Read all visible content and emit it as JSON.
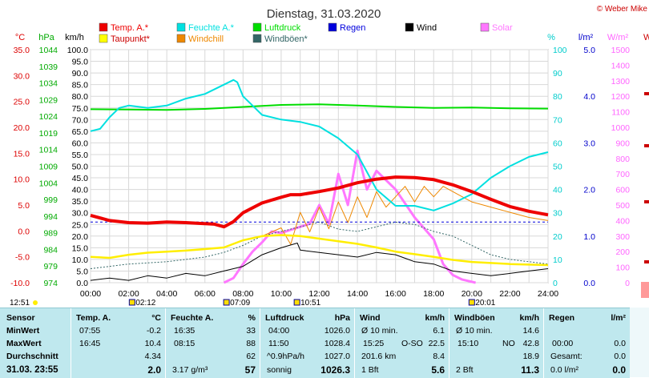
{
  "chart_data": {
    "type": "line",
    "title": "Dienstag, 31.03.2020",
    "copyright": "© Weber Mike",
    "x": [
      "00:00",
      "02:00",
      "04:00",
      "06:00",
      "08:00",
      "10:00",
      "12:00",
      "14:00",
      "16:00",
      "18:00",
      "20:00",
      "22:00",
      "24:00"
    ],
    "xlim": [
      0,
      24
    ],
    "grid": true,
    "axes": {
      "temp": {
        "unit": "°C",
        "ticks": [
          "35.0",
          "30.0",
          "25.0",
          "20.0",
          "15.0",
          "10.0",
          "5.0",
          "0.0",
          "-5.0",
          "-10.0"
        ],
        "range": [
          -10,
          35
        ],
        "color": "#dd0000"
      },
      "pressure": {
        "unit": "hPa",
        "ticks": [
          "1044",
          "1039",
          "1034",
          "1029",
          "1024",
          "1019",
          "1014",
          "1009",
          "1004",
          "999",
          "994",
          "989",
          "984",
          "979",
          "974"
        ],
        "range": [
          974,
          1044
        ],
        "color": "#00aa00"
      },
      "wind": {
        "unit": "km/h",
        "ticks": [
          "100.0",
          "95.0",
          "90.0",
          "85.0",
          "80.0",
          "75.0",
          "70.0",
          "65.0",
          "60.0",
          "55.0",
          "50.0",
          "45.0",
          "40.0",
          "35.0",
          "30.0",
          "25.0",
          "20.0",
          "15.0",
          "10.0",
          "5.0",
          "0.0"
        ],
        "range": [
          0,
          100
        ],
        "color": "#000000"
      },
      "humidity": {
        "unit": "%",
        "ticks": [
          "100",
          "90",
          "80",
          "70",
          "60",
          "50",
          "40",
          "30",
          "20",
          "10",
          "0"
        ],
        "range": [
          0,
          100
        ],
        "color": "#00cccc"
      },
      "rain": {
        "unit": "l/m²",
        "ticks": [
          "5.0",
          "4.0",
          "3.0",
          "2.0",
          "1.0",
          "0.0"
        ],
        "range": [
          0,
          5
        ],
        "color": "#0000cc"
      },
      "solar": {
        "unit": "W/m²",
        "ticks": [
          "1500",
          "1400",
          "1300",
          "1200",
          "1100",
          "1000",
          "900",
          "800",
          "700",
          "600",
          "500",
          "400",
          "300",
          "200",
          "100",
          "0"
        ],
        "range": [
          0,
          1500
        ],
        "color": "#ff66ff"
      },
      "extra_w": "W"
    },
    "legend": [
      {
        "name": "Temp. A.*",
        "color": "#ee0000"
      },
      {
        "name": "Feuchte A.*",
        "color": "#00e0e0"
      },
      {
        "name": "Luftdruck",
        "color": "#00dd00"
      },
      {
        "name": "Regen",
        "color": "#0000dd"
      },
      {
        "name": "Wind",
        "color": "#000000"
      },
      {
        "name": "Solar",
        "color": "#ff77ff"
      },
      {
        "name": "Taupunkt*",
        "color": "#ffff00"
      },
      {
        "name": "Windchill",
        "color": "#ee8800"
      },
      {
        "name": "Windböen*",
        "color": "#336666"
      }
    ],
    "series": [
      {
        "name": "Temp. A.*",
        "unit": "°C",
        "x": [
          0,
          1,
          2,
          3,
          4,
          5,
          6,
          6.5,
          7,
          7.5,
          8,
          9,
          10,
          10.5,
          11,
          12,
          13,
          14,
          15,
          16,
          17,
          18,
          19,
          20,
          21,
          22,
          23,
          24
        ],
        "y": [
          3.0,
          2.0,
          1.6,
          1.5,
          1.7,
          1.6,
          1.4,
          1.3,
          0.8,
          1.8,
          3.5,
          5.4,
          6.5,
          7.0,
          7.0,
          7.6,
          8.3,
          9.3,
          10.0,
          10.4,
          10.3,
          9.9,
          8.9,
          7.6,
          6.1,
          4.7,
          3.8,
          3.1
        ]
      },
      {
        "name": "Feuchte A.*",
        "unit": "%",
        "x": [
          0,
          0.5,
          1,
          1.5,
          2,
          3,
          4,
          5,
          6,
          7,
          7.5,
          7.7,
          8,
          8.5,
          9,
          10,
          11,
          12,
          13,
          14,
          15,
          16,
          17,
          18,
          19,
          20,
          21,
          22,
          23,
          24
        ],
        "y": [
          65,
          66,
          71,
          75,
          76,
          75,
          76,
          79,
          81,
          85,
          87,
          86,
          80,
          76,
          72,
          70,
          69,
          67,
          62,
          55,
          40,
          33,
          33,
          31,
          34,
          38,
          45,
          50,
          54,
          56
        ]
      },
      {
        "name": "Luftdruck",
        "unit": "hPa",
        "x": [
          0,
          2,
          4,
          6,
          8,
          10,
          12,
          14,
          16,
          18,
          20,
          22,
          24
        ],
        "y": [
          1026.1,
          1026.0,
          1025.9,
          1026.2,
          1026.8,
          1027.4,
          1027.6,
          1027.2,
          1026.8,
          1026.5,
          1026.6,
          1026.4,
          1026.3
        ]
      },
      {
        "name": "Regen",
        "unit": "l/m²",
        "x": [
          0,
          24
        ],
        "y": [
          0.0,
          0.0
        ],
        "level_line": 1.3
      },
      {
        "name": "Taupunkt*",
        "unit": "°C",
        "x": [
          0,
          1,
          2,
          3,
          4,
          5,
          6,
          7,
          8,
          9,
          10,
          11,
          12,
          13,
          14,
          15,
          16,
          17,
          18,
          19,
          20,
          21,
          22,
          23,
          24
        ],
        "y": [
          -5.0,
          -5.2,
          -4.6,
          -4.2,
          -4.0,
          -3.8,
          -3.5,
          -3.2,
          -1.8,
          -1.0,
          -0.8,
          -1.0,
          -1.5,
          -2.0,
          -2.5,
          -3.2,
          -4.0,
          -4.5,
          -5.0,
          -5.6,
          -6.0,
          -6.2,
          -6.4,
          -6.5,
          -6.6
        ]
      },
      {
        "name": "Windchill",
        "unit": "°C",
        "x": [
          9,
          10,
          10.5,
          11,
          11.5,
          12,
          12.5,
          13,
          13.5,
          14,
          14.5,
          15,
          15.5,
          16,
          16.5,
          17,
          17.5,
          18,
          18.5,
          19,
          19.5,
          20,
          21,
          22,
          23,
          24
        ],
        "y": [
          -1.0,
          0.6,
          -2.6,
          3.6,
          -0.2,
          4.6,
          0.4,
          5.6,
          1.6,
          6.6,
          2.6,
          7.6,
          4.6,
          6.6,
          8.6,
          5.6,
          8.6,
          6.6,
          8.6,
          7.6,
          6.6,
          5.6,
          4.6,
          3.6,
          2.6,
          2.0
        ]
      },
      {
        "name": "Windböen*",
        "unit": "km/h",
        "x": [
          0,
          2,
          4,
          6,
          7,
          8,
          9,
          10,
          11,
          12,
          13,
          14,
          15,
          16,
          17,
          18,
          19,
          20,
          21,
          22,
          23,
          24
        ],
        "y": [
          6,
          8,
          9,
          11,
          13,
          16,
          20,
          22,
          24,
          26,
          23,
          22,
          24,
          26,
          25,
          22,
          20,
          16,
          12,
          10,
          9,
          8
        ]
      },
      {
        "name": "Wind",
        "unit": "km/h",
        "x": [
          0,
          1,
          2,
          3,
          4,
          5,
          6,
          7,
          8,
          9,
          10,
          10.85,
          11,
          12,
          13,
          14,
          15,
          16,
          17,
          18,
          19,
          20,
          21,
          22,
          23,
          24
        ],
        "y": [
          1,
          2,
          1,
          3,
          2,
          4,
          3,
          5,
          7,
          12,
          15,
          17,
          14,
          13,
          12,
          11,
          13,
          12,
          9,
          8,
          5,
          4,
          3,
          4,
          5,
          6
        ]
      },
      {
        "name": "Solar",
        "unit": "W/m²",
        "x": [
          7,
          7.5,
          8,
          8.5,
          9,
          9.5,
          10,
          10.5,
          11,
          11.5,
          12,
          12.5,
          13,
          13.5,
          14,
          14.5,
          15,
          16,
          17,
          18,
          18.5,
          19,
          19.5,
          20.2
        ],
        "y": [
          0,
          30,
          120,
          200,
          260,
          330,
          320,
          340,
          360,
          380,
          500,
          380,
          700,
          500,
          850,
          600,
          720,
          600,
          420,
          280,
          120,
          50,
          20,
          0
        ]
      }
    ],
    "event_markers": [
      {
        "label": "12:51",
        "x_text": "12:51"
      },
      {
        "label": "02:12",
        "x": 2.2
      },
      {
        "label": "07:09",
        "x": 7.15
      },
      {
        "label": "10:51",
        "x": 10.85
      },
      {
        "label": "20:01",
        "x": 20.02
      }
    ]
  },
  "table": {
    "col1": {
      "header": "Sensor",
      "r1": "MinWert",
      "r2": "MaxWert",
      "r3": "Durchschnitt",
      "r4": "31.03.  23:55"
    },
    "col2": {
      "header": "Temp. A.",
      "unit": "°C",
      "r1_time": "07:55",
      "r1_val": "-0.2",
      "r2_time": "16:45",
      "r2_val": "10.4",
      "r3_val": "4.34",
      "r4_val": "2.0"
    },
    "col3": {
      "header": "Feuchte A.",
      "unit": "%",
      "r1_time": "16:35",
      "r1_val": "33",
      "r2_time": "08:15",
      "r2_val": "88",
      "r3_val": "62",
      "r4_label": "3.17 g/m³",
      "r4_val": "57"
    },
    "col4": {
      "header": "Luftdruck",
      "unit": "hPa",
      "r1_time": "04:00",
      "r1_val": "1026.0",
      "r2_time": "11:50",
      "r2_val": "1028.4",
      "r3_label": "^0.9hPa/h",
      "r3_val": "1027.0",
      "r4_label": "sonnig",
      "r4_val": "1026.3"
    },
    "col5": {
      "header": "Wind",
      "unit": "km/h",
      "r1_label": "Ø 10 min.",
      "r1_val": "6.1",
      "r2_time": "15:25",
      "r2_dir": "O-SO",
      "r2_val": "22.5",
      "r3_label": "201.6 km",
      "r3_val": "8.4",
      "r4_label": "1 Bft",
      "r4_val": "5.6"
    },
    "col6": {
      "header": "Windböen",
      "unit": "km/h",
      "r1_label": "Ø 10 min.",
      "r1_val": "14.6",
      "r2_time": "15:10",
      "r2_dir": "NO",
      "r2_val": "42.8",
      "r3_val": "18.9",
      "r4_label": "2 Bft",
      "r4_val": "11.3"
    },
    "col7": {
      "header": "Regen",
      "unit": "l/m²",
      "r2_time": "00:00",
      "r2_val": "0.0",
      "r3_label": "Gesamt:",
      "r3_val": "0.0",
      "r4_label": "0.0 l/m²",
      "r4_val": "0.0"
    }
  }
}
